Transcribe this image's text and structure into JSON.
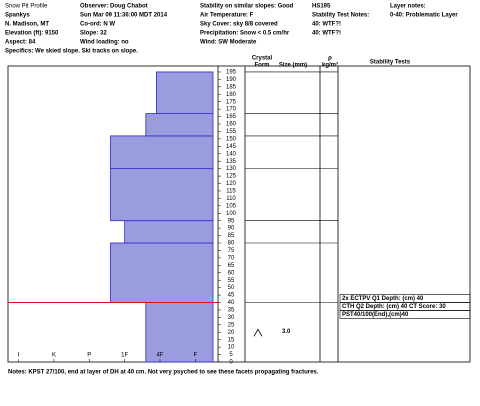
{
  "header": {
    "columns": [
      [
        "Snow Pit Profile",
        "Spankys",
        "N. Madison, MT",
        "Elevation (ft):   9150",
        "Aspect:      84",
        "Specifics: We skied slope. Ski tracks on slope."
      ],
      [
        "Observer:   Doug Chabot",
        "Sun Mar 09 11:36:00 MDT 2014",
        "Co-ord:   N  W",
        "Slope:   32",
        "Wind loading:   no"
      ],
      [
        "Stability on similar slopes:  Good",
        "Air Temperature:   F",
        "Sky Cover:   sky 8/8 covered",
        "Precipitation:   Snow < 0.5 cm/hr",
        "Wind:   SW Moderate"
      ],
      [
        "HS195",
        "Stability Test Notes:",
        "40: WTF?!",
        "40: WTF?!"
      ],
      [
        "Layer notes:",
        "0-40: Problematic Layer"
      ]
    ]
  },
  "chart_data": {
    "type": "snow-profile",
    "column_headers": {
      "crystal": "Crystal",
      "form": "Form",
      "size": "Size (mm)",
      "density": "ρ",
      "density_unit": "kg/m³",
      "tests": "Stability Tests"
    },
    "layers": [
      {
        "bottom": 0,
        "top": 40,
        "hardness": 2.4
      },
      {
        "bottom": 40,
        "top": 80,
        "hardness": 3.4
      },
      {
        "bottom": 80,
        "top": 95,
        "hardness": 3.0
      },
      {
        "bottom": 95,
        "top": 130,
        "hardness": 3.4
      },
      {
        "bottom": 130,
        "top": 152,
        "hardness": 3.4
      },
      {
        "bottom": 152,
        "top": 167,
        "hardness": 2.4
      },
      {
        "bottom": 167,
        "top": 195,
        "hardness": 2.1
      }
    ],
    "highlight_height": 40,
    "bar_color": "#9b9be0",
    "line_color": "#2a2acc",
    "highlight_color": "#dd1111",
    "xlim": [
      6.3,
      0.5
    ],
    "xticks": [
      {
        "value": 6,
        "label": "I"
      },
      {
        "value": 5,
        "label": "K"
      },
      {
        "value": 4,
        "label": "P"
      },
      {
        "value": 3,
        "label": "1F"
      },
      {
        "value": 2,
        "label": "4F"
      },
      {
        "value": 1,
        "label": "F"
      }
    ],
    "ylim": [
      0,
      199
    ],
    "yticks": [
      0,
      5,
      10,
      15,
      20,
      25,
      30,
      35,
      40,
      45,
      50,
      55,
      60,
      65,
      70,
      75,
      80,
      85,
      90,
      95,
      100,
      105,
      110,
      115,
      120,
      125,
      130,
      135,
      140,
      145,
      150,
      155,
      160,
      165,
      170,
      175,
      180,
      185,
      190,
      195
    ],
    "crystal": {
      "height": 20,
      "size": "3.0"
    },
    "tests": {
      "height": 40,
      "items": [
        "2x ECTPV Q1 Depth: (cm) 40",
        "CTH Q2 Depth: (cm) 40 CT Score: 30",
        "PST40/100(End),(cm)40"
      ]
    }
  },
  "notes": "Notes:  KPST 27/100, end at layer of DH at 40 cm. Not very psyched to see these facets propagating fractures."
}
